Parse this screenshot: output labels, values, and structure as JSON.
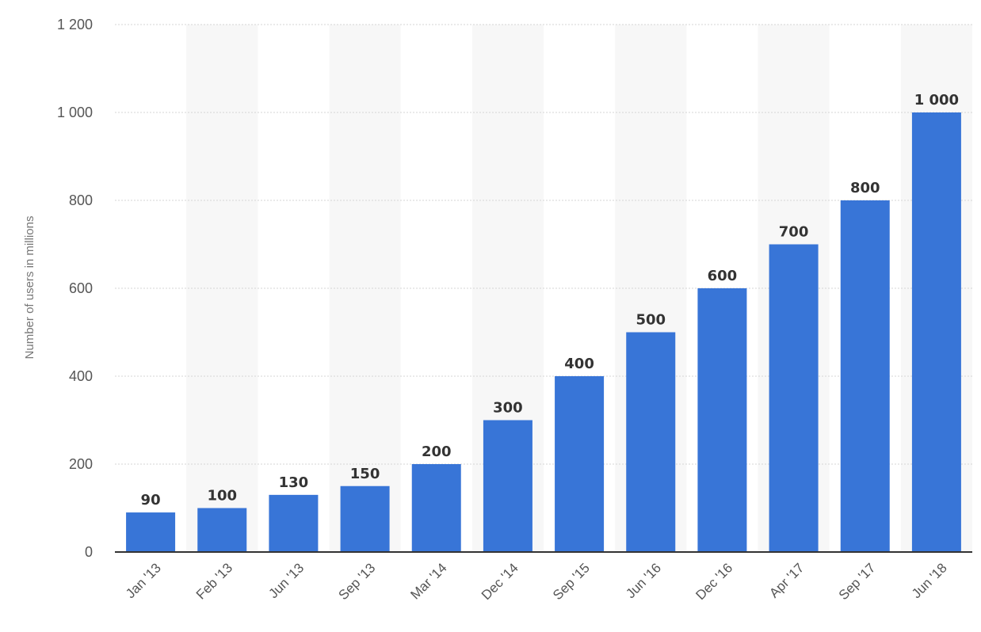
{
  "chart_data": {
    "type": "bar",
    "categories": [
      "Jan '13",
      "Feb '13",
      "Jun '13",
      "Sep '13",
      "Mar '14",
      "Dec '14",
      "Sep '15",
      "Jun '16",
      "Dec '16",
      "Apr '17",
      "Sep '17",
      "Jun '18"
    ],
    "values": [
      90,
      100,
      130,
      150,
      200,
      300,
      400,
      500,
      600,
      700,
      800,
      1000
    ],
    "value_labels": [
      "90",
      "100",
      "130",
      "150",
      "200",
      "300",
      "400",
      "500",
      "600",
      "700",
      "800",
      "1 000"
    ],
    "ylabel": "Number of users in millions",
    "xlabel": "",
    "ylim": [
      0,
      1200
    ],
    "yticks": [
      0,
      200,
      400,
      600,
      800,
      1000,
      1200
    ],
    "ytick_labels": [
      "0",
      "200",
      "400",
      "600",
      "800",
      "1 000",
      "1 200"
    ],
    "grid": true,
    "legend": "none",
    "colors": {
      "bar": "#3875d7",
      "band": "#f7f7f7",
      "grid": "#d5d5d5",
      "axis": "#333333"
    }
  }
}
